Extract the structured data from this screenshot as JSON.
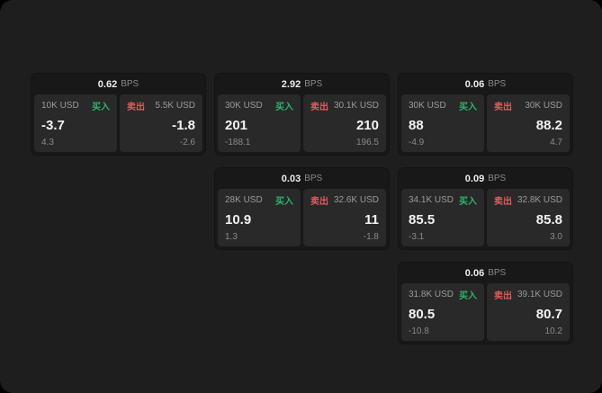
{
  "colors": {
    "buy": "#2fb36c",
    "sell": "#e05b5b"
  },
  "cards": [
    {
      "row": 1,
      "col": 1,
      "bps_value": "0.62",
      "bps_unit": "BPS",
      "buy_amount": "10K USD",
      "buy_label": "买入",
      "buy_price": "-3.7",
      "buy_delta": "4.3",
      "sell_label": "卖出",
      "sell_amount": "5.5K USD",
      "sell_price": "-1.8",
      "sell_delta": "-2.6"
    },
    {
      "row": 1,
      "col": 2,
      "bps_value": "2.92",
      "bps_unit": "BPS",
      "buy_amount": "30K USD",
      "buy_label": "买入",
      "buy_price": "201",
      "buy_delta": "-188.1",
      "sell_label": "卖出",
      "sell_amount": "30.1K USD",
      "sell_price": "210",
      "sell_delta": "196.5"
    },
    {
      "row": 1,
      "col": 3,
      "bps_value": "0.06",
      "bps_unit": "BPS",
      "buy_amount": "30K USD",
      "buy_label": "买入",
      "buy_price": "88",
      "buy_delta": "-4.9",
      "sell_label": "卖出",
      "sell_amount": "30K USD",
      "sell_price": "88.2",
      "sell_delta": "4.7"
    },
    {
      "row": 2,
      "col": 2,
      "bps_value": "0.03",
      "bps_unit": "BPS",
      "buy_amount": "28K USD",
      "buy_label": "买入",
      "buy_price": "10.9",
      "buy_delta": "1.3",
      "sell_label": "卖出",
      "sell_amount": "32.6K USD",
      "sell_price": "11",
      "sell_delta": "-1.8"
    },
    {
      "row": 2,
      "col": 3,
      "bps_value": "0.09",
      "bps_unit": "BPS",
      "buy_amount": "34.1K USD",
      "buy_label": "买入",
      "buy_price": "85.5",
      "buy_delta": "-3.1",
      "sell_label": "卖出",
      "sell_amount": "32.8K USD",
      "sell_price": "85.8",
      "sell_delta": "3.0"
    },
    {
      "row": 3,
      "col": 3,
      "bps_value": "0.06",
      "bps_unit": "BPS",
      "buy_amount": "31.8K USD",
      "buy_label": "买入",
      "buy_price": "80.5",
      "buy_delta": "-10.8",
      "sell_label": "卖出",
      "sell_amount": "39.1K USD",
      "sell_price": "80.7",
      "sell_delta": "10.2"
    }
  ]
}
